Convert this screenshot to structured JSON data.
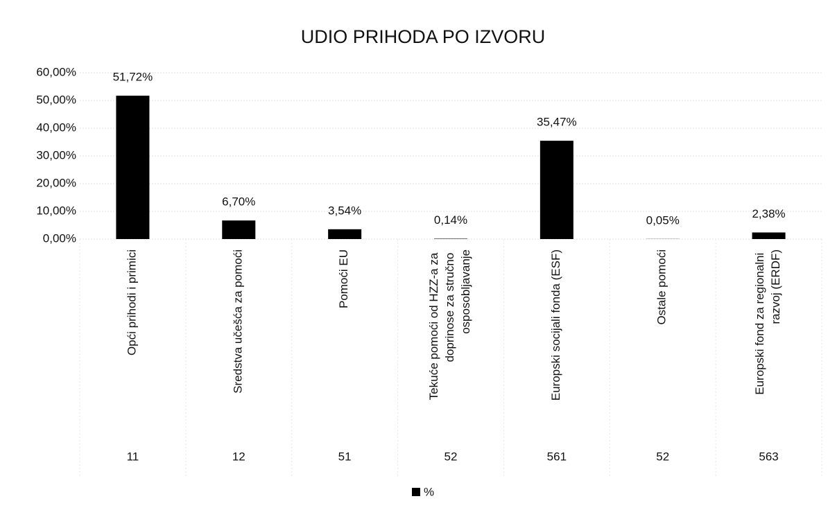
{
  "chart_data": {
    "type": "bar",
    "title": "UDIO PRIHODA PO IZVORU",
    "categories": [
      "Opći prihodi i primici",
      "Sredstva učešća za pomoći",
      "Pomoći EU",
      "Tekuće pomoći od HZZ-a za doprinose za stručno osposobljavanje",
      "Europski socijali fonda (ESF)",
      "Ostale pomoći",
      "Europski fond za regionalni razvoj (ERDF)"
    ],
    "category_groups": [
      "11",
      "12",
      "51",
      "52",
      "561",
      "52",
      "563"
    ],
    "series": [
      {
        "name": "%",
        "color": "#000000",
        "values": [
          51.72,
          6.7,
          3.54,
          0.14,
          35.47,
          0.05,
          2.38
        ],
        "value_labels": [
          "51,72%",
          "6,70%",
          "3,54%",
          "0,14%",
          "35,47%",
          "0,05%",
          "2,38%"
        ]
      }
    ],
    "ylim": [
      0,
      60
    ],
    "yticks": [
      {
        "value": 0,
        "label": "0,00%"
      },
      {
        "value": 10,
        "label": "10,00%"
      },
      {
        "value": 20,
        "label": "20,00%"
      },
      {
        "value": 30,
        "label": "30,00%"
      },
      {
        "value": 40,
        "label": "40,00%"
      },
      {
        "value": 50,
        "label": "50,00%"
      },
      {
        "value": 60,
        "label": "60,00%"
      }
    ],
    "grid": true,
    "legend": "bottom"
  }
}
